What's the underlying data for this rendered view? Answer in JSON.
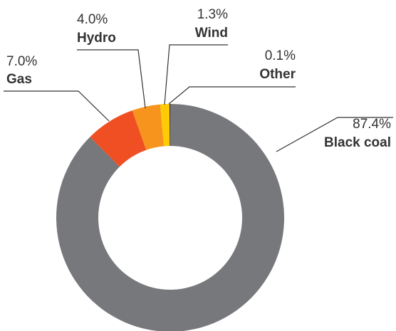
{
  "chart_data": {
    "type": "pie",
    "donut": true,
    "title": "",
    "slices": [
      {
        "label": "Black coal",
        "value": 87.4,
        "display": "87.4%",
        "color": "#77787b"
      },
      {
        "label": "Gas",
        "value": 7.0,
        "display": "7.0%",
        "color": "#f04e23"
      },
      {
        "label": "Hydro",
        "value": 4.0,
        "display": "4.0%",
        "color": "#f7941d"
      },
      {
        "label": "Wind",
        "value": 1.3,
        "display": "1.3%",
        "color": "#ffcb05"
      },
      {
        "label": "Other",
        "value": 0.1,
        "display": "0.1%",
        "color": "#231f20"
      }
    ]
  }
}
